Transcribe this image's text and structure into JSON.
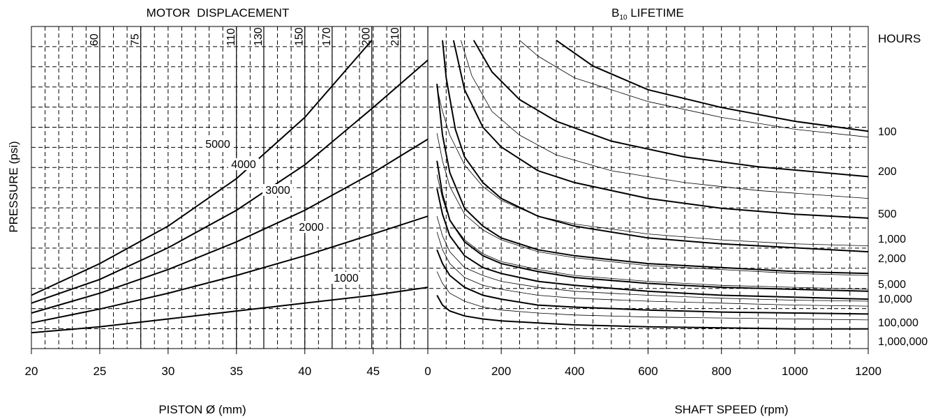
{
  "chart_data": [
    {
      "type": "line",
      "title": "MOTOR  DISPLACEMENT",
      "xlabel": "PISTON Ø (mm)",
      "ylabel": "PRESSURE (psi)",
      "xlim": [
        20,
        49
      ],
      "x_ticks": [
        "20",
        "25",
        "30",
        "35",
        "40",
        "45"
      ],
      "displacement_lines": [
        {
          "label": "60",
          "x": 25
        },
        {
          "label": "75",
          "x": 28
        },
        {
          "label": "110",
          "x": 35
        },
        {
          "label": "130",
          "x": 37
        },
        {
          "label": "150",
          "x": 40
        },
        {
          "label": "170",
          "x": 42
        },
        {
          "label": "200",
          "x": 44.9
        },
        {
          "label": "210",
          "x": 47
        }
      ],
      "series": [
        {
          "name": "1000",
          "x": [
            20,
            25,
            30,
            35,
            40,
            45,
            49
          ],
          "y": [
            0.08,
            0.11,
            0.15,
            0.19,
            0.23,
            0.27,
            0.31
          ]
        },
        {
          "name": "2000",
          "x": [
            20,
            25,
            30,
            35,
            40,
            45,
            49
          ],
          "y": [
            0.13,
            0.2,
            0.28,
            0.37,
            0.47,
            0.58,
            0.67
          ]
        },
        {
          "name": "3000",
          "x": [
            20,
            25,
            30,
            35,
            40,
            45,
            49
          ],
          "y": [
            0.18,
            0.28,
            0.4,
            0.54,
            0.7,
            0.89,
            1.06
          ]
        },
        {
          "name": "4000",
          "x": [
            20,
            25,
            30,
            35,
            40,
            45,
            49
          ],
          "y": [
            0.23,
            0.35,
            0.51,
            0.7,
            0.93,
            1.22,
            1.46
          ]
        },
        {
          "name": "5000",
          "x": [
            20,
            25,
            30,
            35,
            40,
            44.9
          ],
          "y": [
            0.27,
            0.43,
            0.62,
            0.86,
            1.17,
            1.56
          ]
        }
      ]
    },
    {
      "type": "line",
      "title_main": "B",
      "title_sub": "10",
      "title_rest": " LIFETIME",
      "xlabel": "SHAFT SPEED (rpm)",
      "xlim": [
        0,
        1200
      ],
      "x_ticks": [
        "0",
        "200",
        "400",
        "600",
        "800",
        "1000",
        "1200"
      ],
      "y_unit": "HOURS",
      "series": [
        {
          "name": "100",
          "x": [
            350,
            450,
            600,
            800,
            1000,
            1200
          ],
          "y": [
            1.56,
            1.43,
            1.31,
            1.22,
            1.15,
            1.1
          ]
        },
        {
          "name": "200",
          "x": [
            125,
            175,
            250,
            350,
            500,
            700,
            900,
            1200
          ],
          "y": [
            1.56,
            1.4,
            1.26,
            1.15,
            1.05,
            0.97,
            0.92,
            0.87
          ]
        },
        {
          "name": "500",
          "x": [
            70,
            100,
            150,
            200,
            300,
            400,
            600,
            800,
            1000,
            1200
          ],
          "y": [
            1.56,
            1.31,
            1.12,
            1.02,
            0.9,
            0.84,
            0.76,
            0.71,
            0.68,
            0.66
          ]
        },
        {
          "name": "1,000",
          "x": [
            40,
            50,
            75,
            100,
            150,
            200,
            300,
            400,
            600,
            800,
            1000,
            1200
          ],
          "y": [
            1.56,
            1.37,
            1.11,
            0.97,
            0.84,
            0.76,
            0.67,
            0.62,
            0.56,
            0.53,
            0.51,
            0.49
          ]
        },
        {
          "name": "2,000",
          "x": [
            25,
            40,
            60,
            100,
            150,
            200,
            300,
            400,
            600,
            800,
            1000,
            1200
          ],
          "y": [
            1.34,
            1.08,
            0.89,
            0.71,
            0.62,
            0.56,
            0.5,
            0.47,
            0.43,
            0.41,
            0.39,
            0.38
          ]
        },
        {
          "name": "5,000",
          "x": [
            25,
            40,
            60,
            100,
            150,
            200,
            300,
            400,
            600,
            800,
            1000,
            1200
          ],
          "y": [
            0.95,
            0.78,
            0.65,
            0.54,
            0.47,
            0.43,
            0.39,
            0.36,
            0.33,
            0.31,
            0.3,
            0.29
          ]
        },
        {
          "name": "10,000",
          "x": [
            25,
            40,
            60,
            100,
            150,
            200,
            300,
            400,
            600,
            800,
            1000,
            1200
          ],
          "y": [
            0.81,
            0.68,
            0.57,
            0.47,
            0.41,
            0.38,
            0.34,
            0.32,
            0.29,
            0.27,
            0.26,
            0.25
          ]
        },
        {
          "name": "100,000",
          "x": [
            25,
            40,
            60,
            100,
            150,
            200,
            300,
            400,
            600,
            800,
            1000,
            1200
          ],
          "y": [
            0.5,
            0.43,
            0.37,
            0.31,
            0.27,
            0.25,
            0.22,
            0.21,
            0.195,
            0.185,
            0.18,
            0.175
          ]
        },
        {
          "name": "1,000,000",
          "x": [
            25,
            40,
            60,
            100,
            150,
            200,
            300,
            400,
            600,
            800,
            1000,
            1200
          ],
          "y": [
            0.27,
            0.22,
            0.19,
            0.165,
            0.15,
            0.14,
            0.13,
            0.12,
            0.11,
            0.105,
            0.1,
            0.1
          ]
        }
      ],
      "light_series": [
        {
          "x": [
            250,
            300,
            400,
            600,
            800,
            1000,
            1200
          ],
          "y": [
            1.56,
            1.48,
            1.37,
            1.25,
            1.17,
            1.11,
            1.07
          ]
        },
        {
          "x": [
            90,
            120,
            175,
            250,
            350,
            500,
            700,
            900,
            1200
          ],
          "y": [
            1.56,
            1.38,
            1.2,
            1.08,
            0.98,
            0.9,
            0.84,
            0.8,
            0.76
          ]
        },
        {
          "x": [
            25,
            40,
            60,
            100,
            150,
            200,
            300,
            400,
            600,
            800,
            1000,
            1200
          ],
          "y": [
            1.32,
            1.2,
            1.08,
            0.93,
            0.82,
            0.75,
            0.67,
            0.63,
            0.58,
            0.55,
            0.53,
            0.52
          ]
        },
        {
          "x": [
            25,
            40,
            60,
            100,
            150,
            200,
            300,
            400,
            600,
            800,
            1000,
            1200
          ],
          "y": [
            1.09,
            0.95,
            0.82,
            0.68,
            0.6,
            0.55,
            0.49,
            0.46,
            0.42,
            0.4,
            0.38,
            0.37
          ]
        },
        {
          "x": [
            25,
            40,
            60,
            100,
            150,
            200,
            300,
            400,
            600,
            800,
            1000,
            1200
          ],
          "y": [
            0.88,
            0.76,
            0.65,
            0.55,
            0.48,
            0.44,
            0.4,
            0.37,
            0.34,
            0.32,
            0.31,
            0.3
          ]
        },
        {
          "x": [
            25,
            40,
            60,
            100,
            150,
            200,
            300,
            400,
            600,
            800,
            1000,
            1200
          ],
          "y": [
            0.67,
            0.57,
            0.49,
            0.41,
            0.37,
            0.34,
            0.31,
            0.29,
            0.27,
            0.255,
            0.245,
            0.24
          ]
        },
        {
          "x": [
            25,
            40,
            60,
            100,
            150,
            200,
            300,
            400,
            600,
            800,
            1000,
            1200
          ],
          "y": [
            0.59,
            0.5,
            0.43,
            0.36,
            0.32,
            0.3,
            0.27,
            0.255,
            0.24,
            0.23,
            0.22,
            0.215
          ]
        },
        {
          "x": [
            25,
            40,
            60,
            100,
            150,
            200,
            300,
            400,
            600,
            800,
            1000,
            1200
          ],
          "y": [
            0.39,
            0.33,
            0.28,
            0.24,
            0.21,
            0.195,
            0.18,
            0.17,
            0.16,
            0.155,
            0.15,
            0.145
          ]
        }
      ],
      "hours_labels": [
        {
          "label": "100",
          "y": 1.1
        },
        {
          "label": "200",
          "y": 0.87
        },
        {
          "label": "500",
          "y": 0.66
        },
        {
          "label": "1,000",
          "y": 0.49
        },
        {
          "label": "2,000",
          "y": 0.38
        },
        {
          "label": "5,000",
          "y": 0.29
        },
        {
          "label": "10,000",
          "y": 0.25
        },
        {
          "label": "100,000",
          "y": 0.175
        },
        {
          "label": "1,000,000",
          "y": 0.1
        }
      ]
    }
  ]
}
